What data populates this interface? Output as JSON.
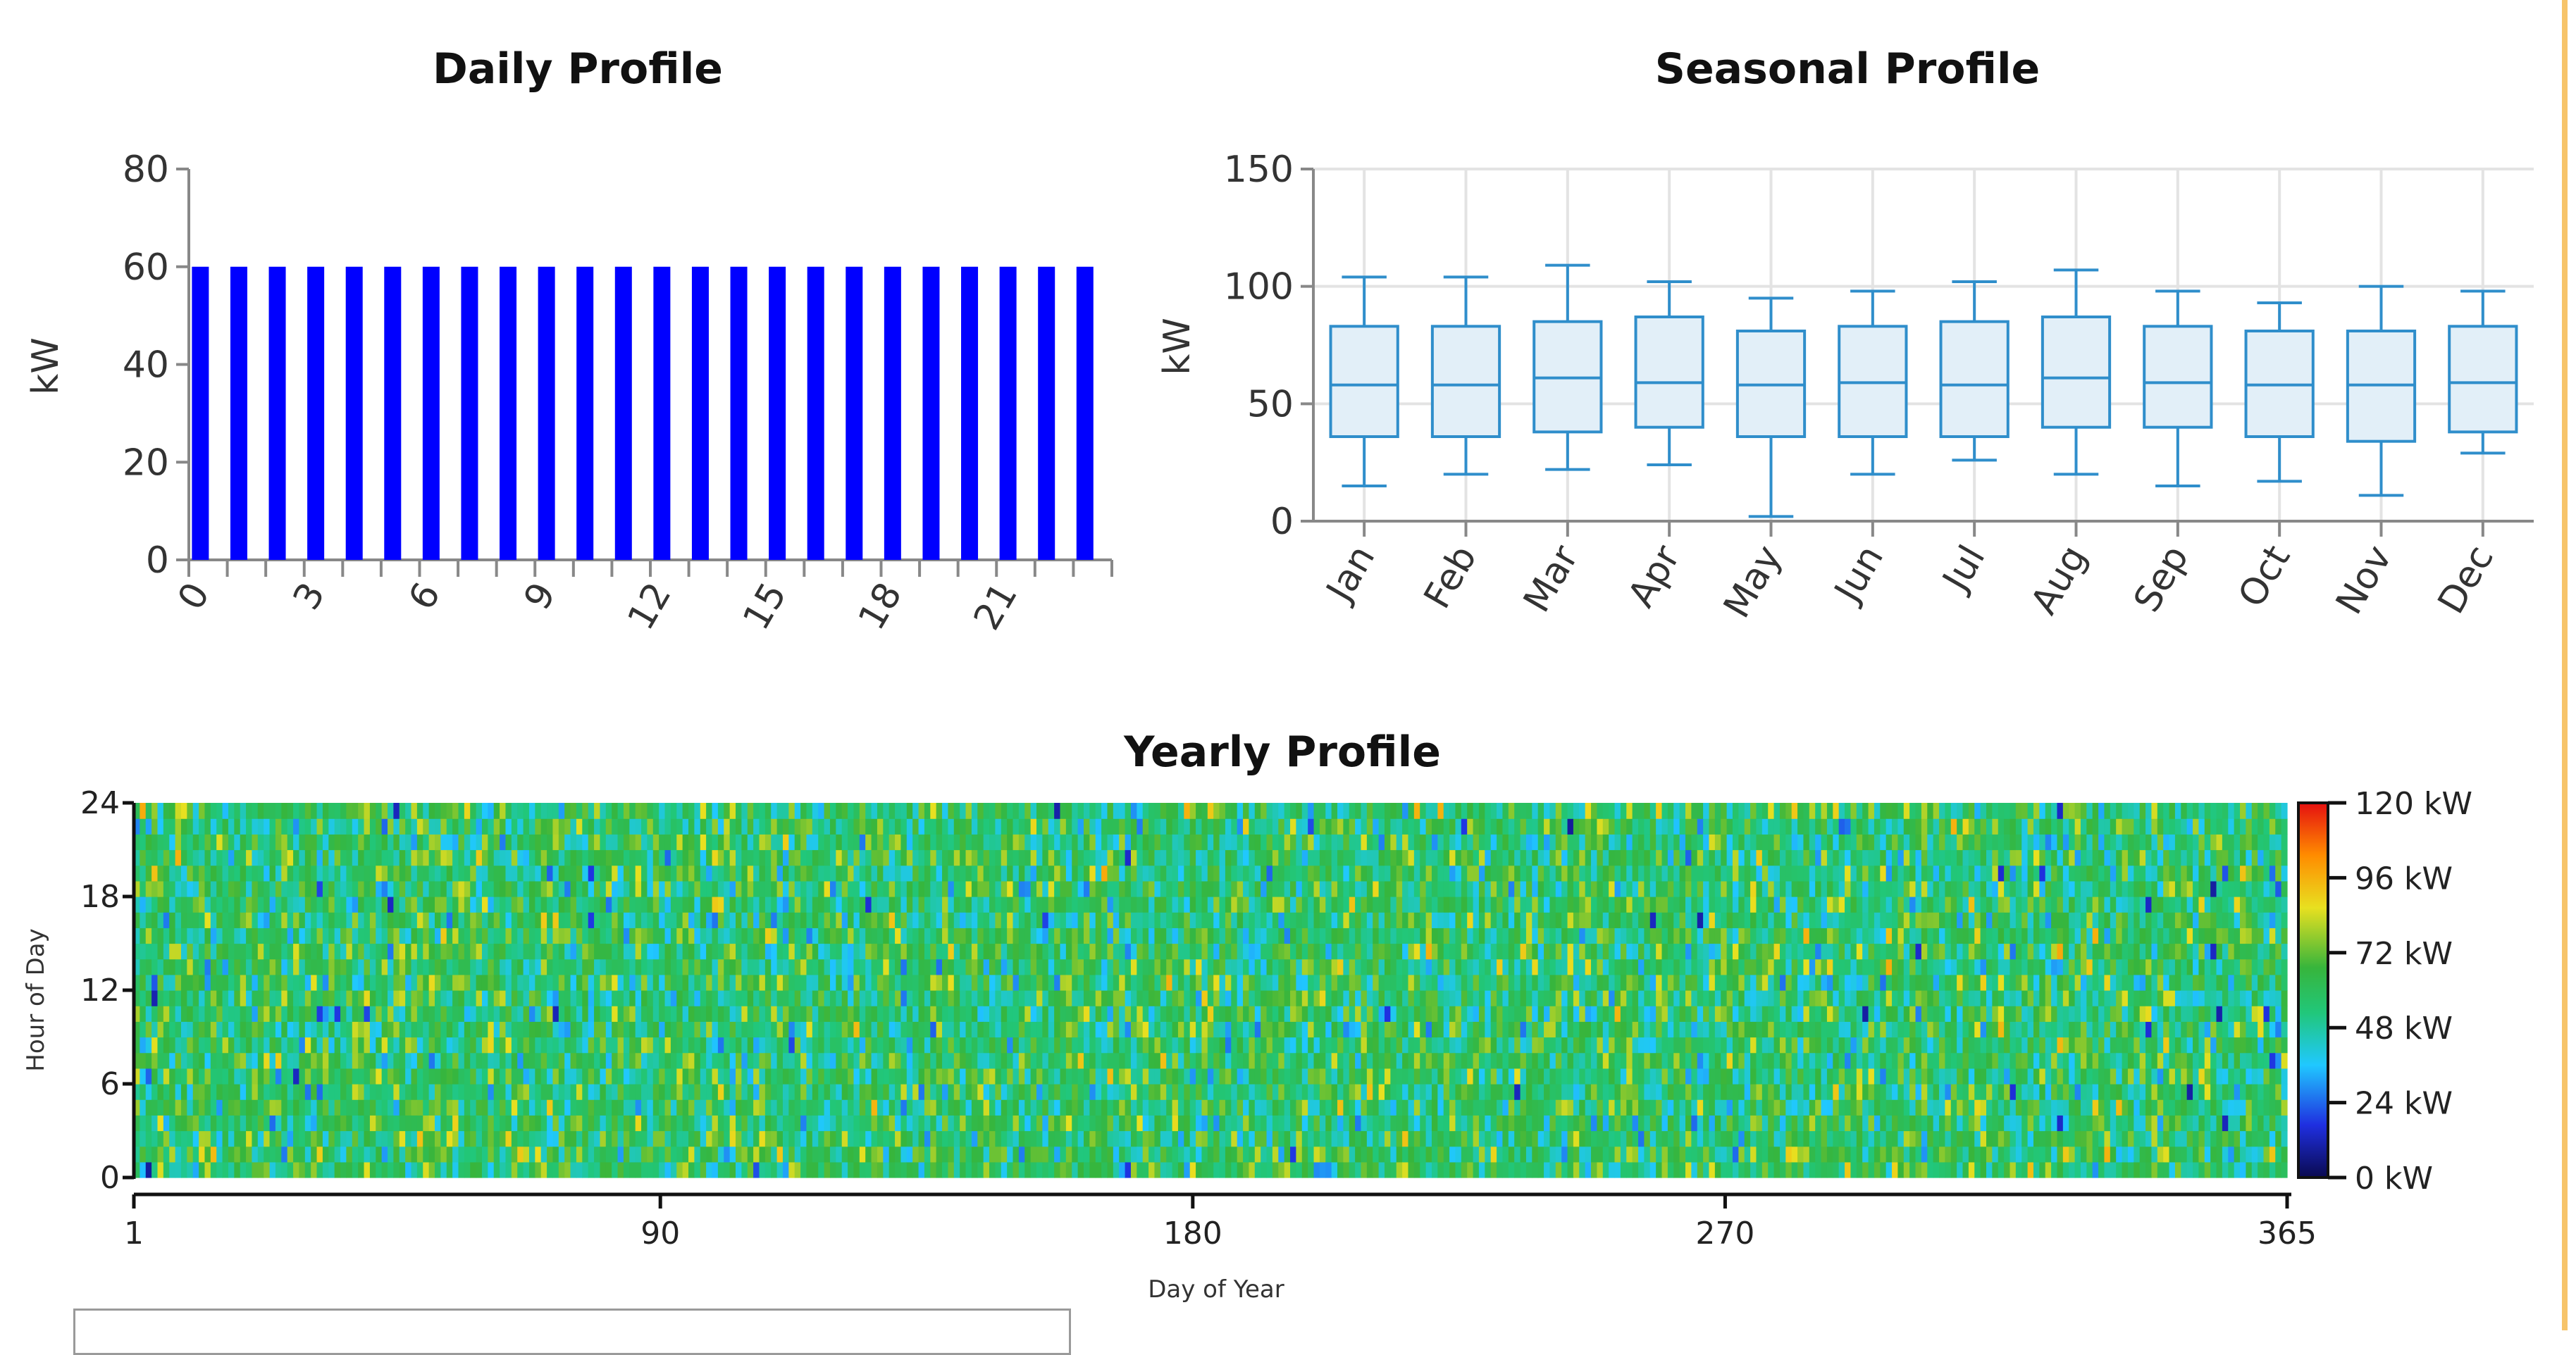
{
  "charts": {
    "daily": {
      "title": "Daily Profile",
      "ylabel": "kW"
    },
    "seasonal": {
      "title": "Seasonal Profile",
      "ylabel": "kW"
    },
    "yearly": {
      "title": "Yearly Profile",
      "xlabel": "Day of Year",
      "ylabel": "Hour of Day"
    }
  },
  "chart_data": [
    {
      "type": "bar",
      "title": "Daily Profile",
      "ylabel": "kW",
      "ylim": [
        0,
        80
      ],
      "yticks": [
        0,
        20,
        40,
        60,
        80
      ],
      "categories": [
        0,
        1,
        2,
        3,
        4,
        5,
        6,
        7,
        8,
        9,
        10,
        11,
        12,
        13,
        14,
        15,
        16,
        17,
        18,
        19,
        20,
        21,
        22,
        23
      ],
      "xtick_labels": [
        "0",
        "3",
        "6",
        "9",
        "12",
        "15",
        "18",
        "21"
      ],
      "values": [
        60,
        60,
        60,
        60,
        60,
        60,
        60,
        60,
        60,
        60,
        60,
        60,
        60,
        60,
        60,
        60,
        60,
        60,
        60,
        60,
        60,
        60,
        60,
        60
      ],
      "color": "#0000ff"
    },
    {
      "type": "box",
      "title": "Seasonal Profile",
      "ylabel": "kW",
      "ylim": [
        0,
        150
      ],
      "yticks": [
        0,
        50,
        100,
        150
      ],
      "grid": true,
      "categories": [
        "Jan",
        "Feb",
        "Mar",
        "Apr",
        "May",
        "Jun",
        "Jul",
        "Aug",
        "Sep",
        "Oct",
        "Nov",
        "Dec"
      ],
      "boxes": [
        {
          "min": 15,
          "q1": 36,
          "median": 58,
          "q3": 83,
          "max": 104
        },
        {
          "min": 20,
          "q1": 36,
          "median": 58,
          "q3": 83,
          "max": 104
        },
        {
          "min": 22,
          "q1": 38,
          "median": 61,
          "q3": 85,
          "max": 109
        },
        {
          "min": 24,
          "q1": 40,
          "median": 59,
          "q3": 87,
          "max": 102
        },
        {
          "min": 2,
          "q1": 36,
          "median": 58,
          "q3": 81,
          "max": 95
        },
        {
          "min": 20,
          "q1": 36,
          "median": 59,
          "q3": 83,
          "max": 98
        },
        {
          "min": 26,
          "q1": 36,
          "median": 58,
          "q3": 85,
          "max": 102
        },
        {
          "min": 20,
          "q1": 40,
          "median": 61,
          "q3": 87,
          "max": 107
        },
        {
          "min": 15,
          "q1": 40,
          "median": 59,
          "q3": 83,
          "max": 98
        },
        {
          "min": 17,
          "q1": 36,
          "median": 58,
          "q3": 81,
          "max": 93
        },
        {
          "min": 11,
          "q1": 34,
          "median": 58,
          "q3": 81,
          "max": 100
        },
        {
          "min": 29,
          "q1": 38,
          "median": 59,
          "q3": 83,
          "max": 98
        }
      ],
      "stroke_color": "#2f8ecb",
      "fill_color": "#e2eff8"
    },
    {
      "type": "heatmap",
      "title": "Yearly Profile",
      "xlabel": "Day of Year",
      "ylabel": "Hour of Day",
      "xlim": [
        1,
        365
      ],
      "ylim": [
        0,
        24
      ],
      "xticks": [
        1,
        90,
        180,
        270,
        365
      ],
      "yticks": [
        0,
        6,
        12,
        18,
        24
      ],
      "colorbar": {
        "range": [
          0,
          120
        ],
        "ticks": [
          "0 kW",
          "24 kW",
          "48 kW",
          "72 kW",
          "96 kW",
          "120 kW"
        ],
        "colors": [
          "#0a0a50",
          "#1f2fe0",
          "#20c8ff",
          "#21c77a",
          "#37b53c",
          "#e8e020",
          "#ff8c00",
          "#e51010"
        ]
      }
    }
  ]
}
